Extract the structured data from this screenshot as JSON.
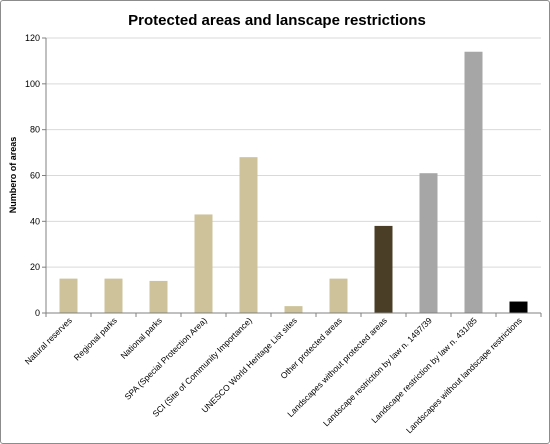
{
  "chart_data": {
    "type": "bar",
    "title": "Protected areas and lanscape restrictions",
    "ylabel": "Numbero of areas",
    "xlabel": "",
    "ylim": [
      0,
      120
    ],
    "yticks": [
      0,
      20,
      40,
      60,
      80,
      100,
      120
    ],
    "grid": true,
    "legend": "none",
    "categories": [
      "Natural reserves",
      "Regional parks",
      "National parks",
      "SPA (Special Protection Area)",
      "SCI (Site of Community Importance)",
      "UNESCO World Heritage List sites",
      "Other protected areas",
      "Landscapes without protected areas",
      "Landscape restriction by law n. 1497/39",
      "Landscape restriction by law n. 431/85",
      "Landscapes without landscape restrictions"
    ],
    "values": [
      15,
      15,
      14,
      43,
      68,
      3,
      15,
      38,
      61,
      114,
      5
    ],
    "colors": [
      "#cdc29a",
      "#cdc29a",
      "#cdc29a",
      "#cdc29a",
      "#cdc29a",
      "#cdc29a",
      "#cdc29a",
      "#4a3f26",
      "#a6a6a6",
      "#a6a6a6",
      "#000000"
    ],
    "gridline_color": "#d9d9d9",
    "axis_color": "#808080"
  }
}
